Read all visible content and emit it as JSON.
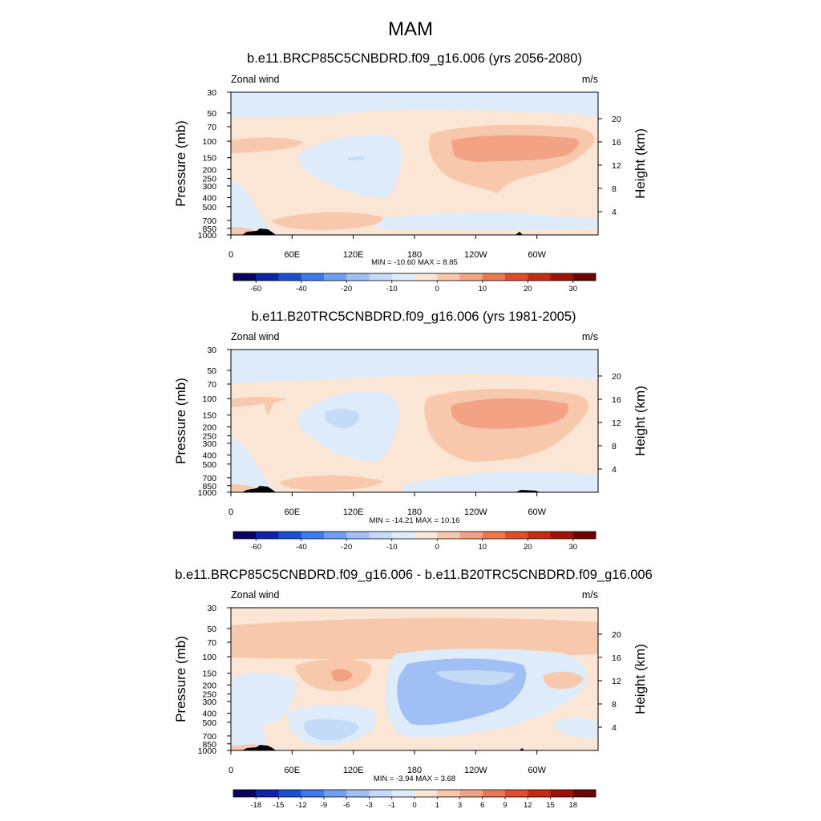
{
  "figure_title": "MAM",
  "chart_data": [
    {
      "type": "heatmap",
      "title": "b.e11.BRCP85C5CNBDRD.f09_g16.006 (yrs 2056-2080)",
      "variable_label": "Zonal wind",
      "units_label": "m/s",
      "ylabel": "Pressure (mb)",
      "y2label": "Height (km)",
      "x_ticks": [
        "0",
        "60E",
        "120E",
        "180",
        "120W",
        "60W"
      ],
      "y_ticks": [
        "30",
        "50",
        "70",
        "100",
        "150",
        "200",
        "250",
        "300",
        "400",
        "500",
        "700",
        "850",
        "1000"
      ],
      "y2_ticks": [
        "20",
        "16",
        "12",
        "8",
        "4"
      ],
      "stats": "MIN = -10.60  MAX =   8.85",
      "min": -10.6,
      "max": 8.85,
      "colorbar_labels": [
        "-60",
        "-40",
        "-20",
        "-10",
        "0",
        "10",
        "20",
        "30"
      ]
    },
    {
      "type": "heatmap",
      "title": "b.e11.B20TRC5CNBDRD.f09_g16.006 (yrs 1981-2005)",
      "variable_label": "Zonal wind",
      "units_label": "m/s",
      "ylabel": "Pressure (mb)",
      "y2label": "Height (km)",
      "x_ticks": [
        "0",
        "60E",
        "120E",
        "180",
        "120W",
        "60W"
      ],
      "y_ticks": [
        "30",
        "50",
        "70",
        "100",
        "150",
        "200",
        "250",
        "300",
        "400",
        "500",
        "700",
        "850",
        "1000"
      ],
      "y2_ticks": [
        "20",
        "16",
        "12",
        "8",
        "4"
      ],
      "stats": "MIN = -14.21  MAX =  10.16",
      "min": -14.21,
      "max": 10.16,
      "colorbar_labels": [
        "-60",
        "-40",
        "-20",
        "-10",
        "0",
        "10",
        "20",
        "30"
      ]
    },
    {
      "type": "heatmap",
      "title": "b.e11.BRCP85C5CNBDRD.f09_g16.006 - b.e11.B20TRC5CNBDRD.f09_g16.006",
      "variable_label": "Zonal wind",
      "units_label": "m/s",
      "ylabel": "Pressure (mb)",
      "y2label": "Height (km)",
      "x_ticks": [
        "0",
        "60E",
        "120E",
        "180",
        "120W",
        "60W"
      ],
      "y_ticks": [
        "30",
        "50",
        "70",
        "100",
        "150",
        "200",
        "250",
        "300",
        "400",
        "500",
        "700",
        "850",
        "1000"
      ],
      "y2_ticks": [
        "20",
        "16",
        "12",
        "8",
        "4"
      ],
      "stats": "MIN = -3.94  MAX =   3.68",
      "min": -3.94,
      "max": 3.68,
      "colorbar_labels": [
        "-18",
        "-15",
        "-12",
        "-9",
        "-6",
        "-3",
        "-1",
        "0",
        "1",
        "3",
        "6",
        "9",
        "12",
        "15",
        "18"
      ]
    }
  ],
  "colors": {
    "scale": [
      "#08035e",
      "#0b24a8",
      "#1a4fd4",
      "#3b7bec",
      "#6f9ff2",
      "#9fbff5",
      "#c4dbf7",
      "#deebfa",
      "#fbe6d6",
      "#f8c8ad",
      "#f3a283",
      "#ec7852",
      "#df4d2b",
      "#c52a14",
      "#9e1208",
      "#6e0303"
    ],
    "panel1": {
      "background": "#fbe6d6",
      "stratosphere": "#deebfa",
      "weak_easterly": "#deebfa",
      "easterly": "#c4dbf7",
      "westerly": "#f8c8ad",
      "jet_core": "#f3a283"
    },
    "panel2": {
      "background": "#fbe6d6",
      "stratosphere": "#deebfa",
      "weak_easterly": "#deebfa",
      "easterly": "#c4dbf7",
      "westerly": "#f8c8ad",
      "jet_core": "#f3a283"
    },
    "panel3": {
      "background": "#fbe6d6",
      "band": "#f8c8ad",
      "weak_negative": "#deebfa",
      "negative": "#c4dbf7",
      "strong_negative": "#9fbff5",
      "positive": "#f8c8ad",
      "strong_positive": "#f3a283"
    },
    "terrain": "#000000",
    "axis": "#000000"
  }
}
